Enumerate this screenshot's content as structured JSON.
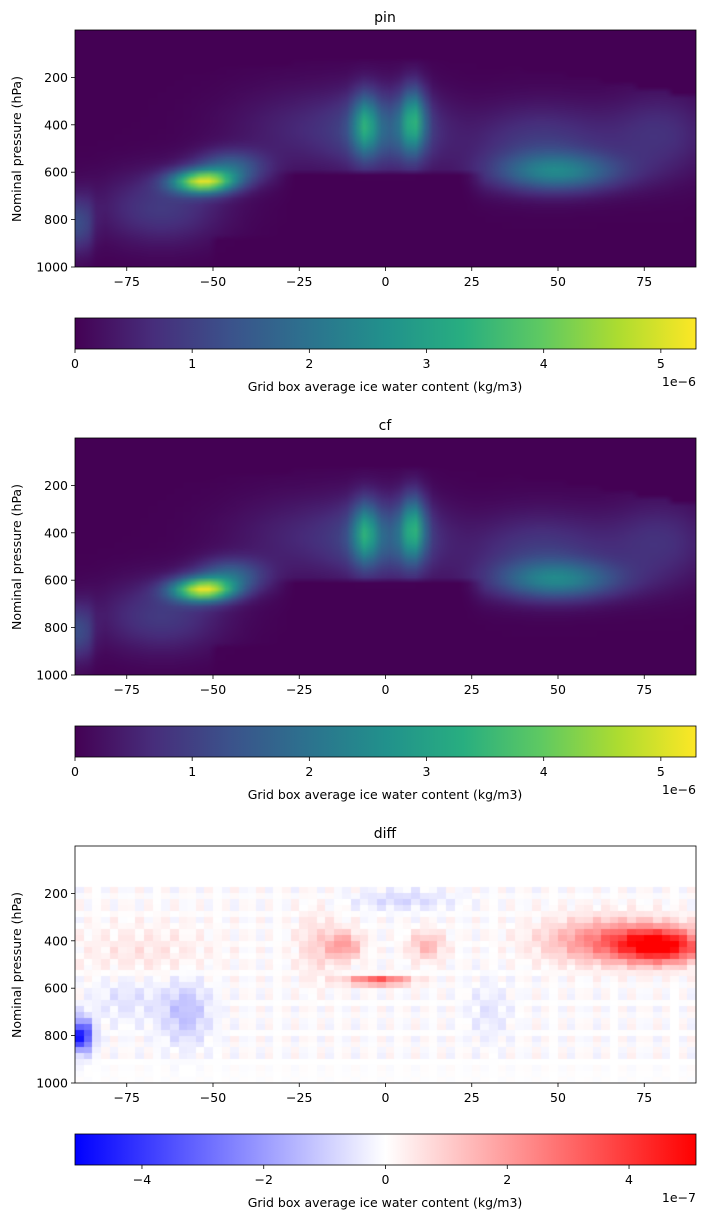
{
  "chart_data": [
    {
      "type": "heatmap",
      "title": "pin",
      "xlabel": "",
      "ylabel": "Nominal pressure (hPa)",
      "xlim": [
        -90,
        90
      ],
      "ylim": [
        1000,
        0
      ],
      "xticks": [
        -75,
        -50,
        -25,
        0,
        25,
        50,
        75
      ],
      "yticks": [
        200,
        400,
        600,
        800,
        1000
      ],
      "colormap": "viridis",
      "colorbar": {
        "label": "Grid box average ice water content (kg/m3)",
        "range": [
          0,
          5.3
        ],
        "ticks": [
          0,
          1,
          2,
          3,
          4,
          5
        ],
        "offset_text": "1e−6"
      },
      "features": [
        {
          "lat": -53,
          "p": 640,
          "value": 5.2
        },
        {
          "lat": -48,
          "p": 600,
          "value": 3.8
        },
        {
          "lat": -5,
          "p": 400,
          "value": 2.6
        },
        {
          "lat": 7,
          "p": 380,
          "value": 3.0
        },
        {
          "lat": 50,
          "p": 600,
          "value": 2.4
        }
      ]
    },
    {
      "type": "heatmap",
      "title": "cf",
      "xlabel": "",
      "ylabel": "Nominal pressure (hPa)",
      "xlim": [
        -90,
        90
      ],
      "ylim": [
        1000,
        0
      ],
      "xticks": [
        -75,
        -50,
        -25,
        0,
        25,
        50,
        75
      ],
      "yticks": [
        200,
        400,
        600,
        800,
        1000
      ],
      "colormap": "viridis",
      "colorbar": {
        "label": "Grid box average ice water content (kg/m3)",
        "range": [
          0,
          5.3
        ],
        "ticks": [
          0,
          1,
          2,
          3,
          4,
          5
        ],
        "offset_text": "1e−6"
      },
      "features": [
        {
          "lat": -53,
          "p": 640,
          "value": 5.3
        },
        {
          "lat": -48,
          "p": 600,
          "value": 3.9
        },
        {
          "lat": -5,
          "p": 400,
          "value": 2.6
        },
        {
          "lat": 7,
          "p": 380,
          "value": 3.0
        },
        {
          "lat": 50,
          "p": 600,
          "value": 2.3
        }
      ]
    },
    {
      "type": "heatmap",
      "title": "diff",
      "xlabel": "",
      "ylabel": "Nominal pressure (hPa)",
      "xlim": [
        -90,
        90
      ],
      "ylim": [
        1000,
        0
      ],
      "xticks": [
        -75,
        -50,
        -25,
        0,
        25,
        50,
        75
      ],
      "yticks": [
        200,
        400,
        600,
        800,
        1000
      ],
      "colormap": "bwr",
      "colorbar": {
        "label": "Grid box average ice water content (kg/m3)",
        "range": [
          -5.1,
          5.1
        ],
        "ticks": [
          -4,
          -2,
          0,
          2,
          4
        ],
        "offset_text": "1e−7"
      },
      "features": [
        {
          "lat": 80,
          "p": 420,
          "value": 4.8
        },
        {
          "lat": 65,
          "p": 400,
          "value": 3.5
        },
        {
          "lat": -2,
          "p": 570,
          "value": 3.8
        },
        {
          "lat": -12,
          "p": 420,
          "value": 2.0
        },
        {
          "lat": -88,
          "p": 800,
          "value": -4.8
        },
        {
          "lat": -58,
          "p": 700,
          "value": -1.2
        }
      ]
    }
  ]
}
